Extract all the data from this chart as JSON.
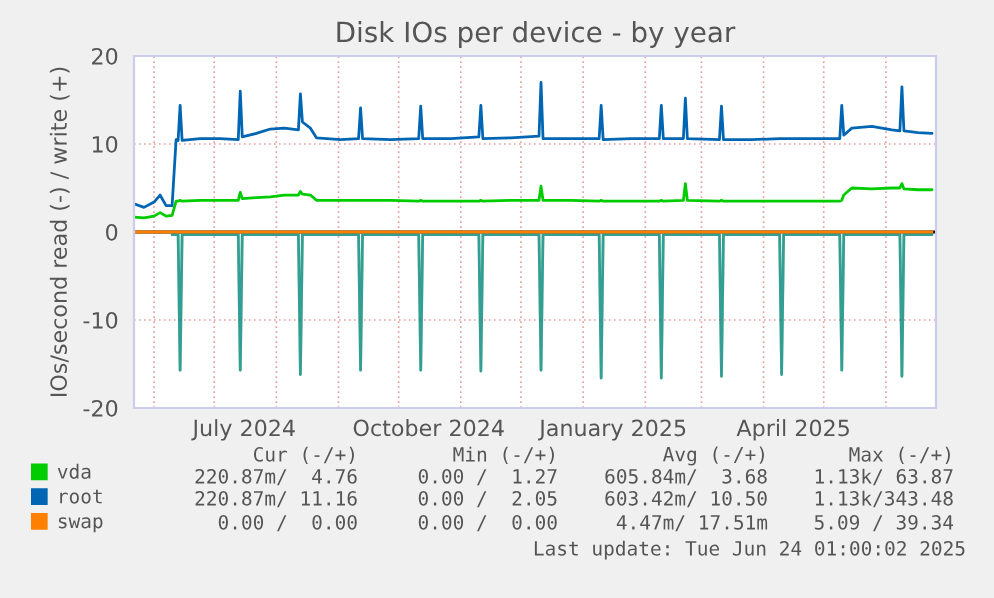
{
  "chart_data": {
    "type": "line",
    "title": "Disk IOs per device - by year",
    "ylabel": "IOs/second read (-) / write (+)",
    "x": [
      "2024-05-22",
      "2024-05-27",
      "2024-06-01",
      "2024-06-04",
      "2024-06-07",
      "2024-06-10",
      "2024-06-12",
      "2024-06-13",
      "2024-06-14",
      "2024-06-15",
      "2024-06-24",
      "2024-07-04",
      "2024-07-13",
      "2024-07-14",
      "2024-07-15",
      "2024-07-22",
      "2024-07-29",
      "2024-08-05",
      "2024-08-12",
      "2024-08-13",
      "2024-08-14",
      "2024-08-18",
      "2024-08-21",
      "2024-09-02",
      "2024-09-11",
      "2024-09-12",
      "2024-09-13",
      "2024-09-27",
      "2024-10-11",
      "2024-10-12",
      "2024-10-13",
      "2024-10-27",
      "2024-11-10",
      "2024-11-11",
      "2024-11-12",
      "2024-11-26",
      "2024-12-10",
      "2024-12-11",
      "2024-12-12",
      "2024-12-26",
      "2025-01-09",
      "2025-01-10",
      "2025-01-11",
      "2025-01-25",
      "2025-02-08",
      "2025-02-09",
      "2025-02-10",
      "2025-02-20",
      "2025-02-21",
      "2025-02-22",
      "2025-03-10",
      "2025-03-11",
      "2025-03-12",
      "2025-03-26",
      "2025-04-09",
      "2025-04-10",
      "2025-04-11",
      "2025-04-25",
      "2025-05-09",
      "2025-05-10",
      "2025-05-11",
      "2025-05-15",
      "2025-05-25",
      "2025-06-04",
      "2025-06-08",
      "2025-06-09",
      "2025-06-10",
      "2025-06-17",
      "2025-06-24"
    ],
    "series": [
      {
        "color": "#00cc00",
        "values": [
          null,
          null,
          null,
          null,
          null,
          -0.3,
          -0.3,
          -0.3,
          -15.7,
          -0.3,
          -0.3,
          -0.3,
          -0.3,
          -15.7,
          -0.3,
          -0.3,
          -0.3,
          -0.3,
          -0.3,
          -16.2,
          -0.3,
          -0.3,
          -0.3,
          -0.3,
          -0.3,
          -15.7,
          -0.3,
          -0.3,
          -0.3,
          -15.7,
          -0.3,
          -0.3,
          -0.3,
          -15.8,
          -0.3,
          -0.3,
          -0.3,
          -15.7,
          -0.3,
          -0.3,
          -0.3,
          -16.6,
          -0.3,
          -0.3,
          -0.3,
          -16.6,
          -0.3,
          -0.3,
          -0.3,
          -0.3,
          -0.3,
          -16.4,
          -0.3,
          -0.3,
          -0.3,
          -16.2,
          -0.3,
          -0.3,
          -0.3,
          -15.7,
          -0.3,
          -0.3,
          -0.3,
          -0.3,
          -0.3,
          -16.4,
          -0.3,
          -0.3,
          -0.3
        ]
      },
      {
        "color": "#0066b3",
        "values": [
          null,
          null,
          null,
          null,
          null,
          -0.3,
          -0.3,
          -0.3,
          -15.7,
          -0.3,
          -0.3,
          -0.3,
          -0.3,
          -15.7,
          -0.3,
          -0.3,
          -0.3,
          -0.3,
          -0.3,
          -16.2,
          -0.3,
          -0.3,
          -0.3,
          -0.3,
          -0.3,
          -15.7,
          -0.3,
          -0.3,
          -0.3,
          -15.7,
          -0.3,
          -0.3,
          -0.3,
          -15.8,
          -0.3,
          -0.3,
          -0.3,
          -15.7,
          -0.3,
          -0.3,
          -0.3,
          -16.6,
          -0.3,
          -0.3,
          -0.3,
          -16.6,
          -0.3,
          -0.3,
          -0.3,
          -0.3,
          -0.3,
          -16.4,
          -0.3,
          -0.3,
          -0.3,
          -16.2,
          -0.3,
          -0.3,
          -0.3,
          -15.7,
          -0.3,
          -0.3,
          -0.3,
          -0.3,
          -0.3,
          -16.4,
          -0.3,
          -0.3,
          -0.3
        ]
      },
      {
        "name": "vda",
        "color": "#00cc00",
        "values": [
          1.7,
          1.6,
          1.8,
          2.2,
          1.8,
          1.9,
          3.5,
          3.5,
          3.6,
          3.5,
          3.6,
          3.6,
          3.6,
          4.5,
          3.8,
          3.9,
          4.0,
          4.2,
          4.2,
          4.6,
          4.3,
          4.2,
          3.6,
          3.6,
          3.6,
          3.6,
          3.6,
          3.6,
          3.5,
          3.6,
          3.5,
          3.5,
          3.5,
          3.6,
          3.5,
          3.6,
          3.6,
          5.2,
          3.6,
          3.6,
          3.5,
          3.6,
          3.5,
          3.5,
          3.5,
          3.6,
          3.5,
          3.6,
          5.5,
          3.6,
          3.5,
          3.6,
          3.5,
          3.5,
          3.5,
          3.5,
          3.5,
          3.5,
          3.5,
          3.6,
          4.2,
          5.0,
          4.9,
          5.0,
          5.0,
          5.5,
          4.9,
          4.8,
          4.8
        ]
      },
      {
        "name": "root",
        "color": "#0066b3",
        "values": [
          3.2,
          2.8,
          3.4,
          4.2,
          3.0,
          3.0,
          10.5,
          10.4,
          14.4,
          10.4,
          10.6,
          10.6,
          10.5,
          16.0,
          10.8,
          11.2,
          11.7,
          11.8,
          11.6,
          15.7,
          12.5,
          11.8,
          10.7,
          10.5,
          10.6,
          14.1,
          10.6,
          10.5,
          10.6,
          14.3,
          10.6,
          10.6,
          10.8,
          14.4,
          10.6,
          10.7,
          10.9,
          17.0,
          10.6,
          10.6,
          10.6,
          14.4,
          10.5,
          10.6,
          10.6,
          14.4,
          10.6,
          10.6,
          15.2,
          10.6,
          10.5,
          14.3,
          10.5,
          10.5,
          10.6,
          10.6,
          10.6,
          10.6,
          10.6,
          14.4,
          11.0,
          11.8,
          12.0,
          11.6,
          11.5,
          16.5,
          11.5,
          11.3,
          11.2
        ]
      },
      {
        "name": "swap",
        "color": "#ff8000",
        "values": [
          0,
          0,
          0,
          0,
          0,
          0,
          0,
          0,
          0,
          0,
          0,
          0,
          0,
          0,
          0,
          0,
          0,
          0,
          0,
          0,
          0,
          0,
          0,
          0,
          0,
          0,
          0,
          0,
          0,
          0,
          0,
          0,
          0,
          0,
          0,
          0,
          0,
          0,
          0,
          0,
          0,
          0,
          0,
          0,
          0,
          0,
          0,
          0,
          0,
          0,
          0,
          0,
          0,
          0,
          0,
          0,
          0,
          0,
          0,
          0,
          0,
          0,
          0,
          0,
          0,
          0,
          0,
          0,
          0
        ]
      }
    ],
    "xlim": [
      "2024-05-22",
      "2025-06-26"
    ],
    "xticks": [
      {
        "value": "2024-06-01",
        "label": null
      },
      {
        "value": "2024-07-01",
        "label": null
      },
      {
        "value": "2024-07-16",
        "label": "July 2024"
      },
      {
        "value": "2024-08-01",
        "label": null
      },
      {
        "value": "2024-09-01",
        "label": null
      },
      {
        "value": "2024-10-01",
        "label": null
      },
      {
        "value": "2024-10-16",
        "label": "October 2024"
      },
      {
        "value": "2024-11-01",
        "label": null
      },
      {
        "value": "2024-12-01",
        "label": null
      },
      {
        "value": "2025-01-01",
        "label": null
      },
      {
        "value": "2025-01-16",
        "label": "January 2025"
      },
      {
        "value": "2025-02-01",
        "label": null
      },
      {
        "value": "2025-03-01",
        "label": null
      },
      {
        "value": "2025-04-01",
        "label": null
      },
      {
        "value": "2025-04-16",
        "label": "April 2025"
      },
      {
        "value": "2025-05-01",
        "label": null
      },
      {
        "value": "2025-06-01",
        "label": null
      }
    ],
    "ylim": [
      -20,
      20
    ],
    "yticks": [
      -20,
      -10,
      0,
      10,
      20
    ],
    "ref_lines": [
      {
        "axis": "y",
        "value": 0,
        "color": "#000000"
      }
    ],
    "grid": true,
    "legend": "bottom left",
    "annotations": [
      "Cur (-/+)",
      "Min (-/+)",
      "Avg (-/+)",
      "Max (-/+)",
      "220.87m/  4.76",
      "0.00 /  1.27",
      "605.84m/  3.68",
      "1.13k/ 63.87",
      "220.87m/ 11.16",
      "0.00 /  2.05",
      "603.42m/ 10.50",
      "1.13k/343.48",
      "0.00 /  0.00",
      "0.00 /  0.00",
      "4.47m/ 17.51m",
      "5.09 / 39.34",
      "Last update: Tue Jun 24 01:00:02 2025"
    ]
  }
}
